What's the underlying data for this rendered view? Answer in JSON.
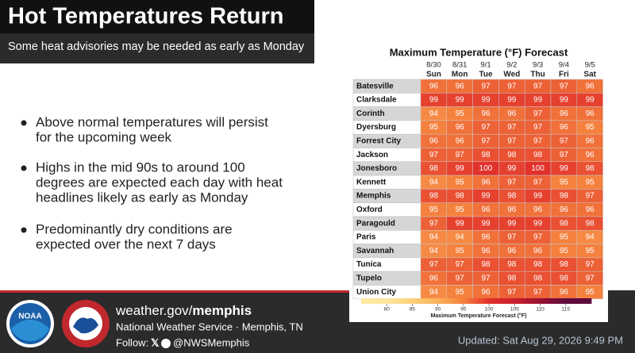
{
  "header": {
    "title": "Hot Temperatures Return",
    "subtitle": "Some heat advisories may be needed as early as Monday"
  },
  "bullets": [
    [
      "Above normal temperatures will persist",
      "for the upcoming week"
    ],
    [
      "Highs in the mid 90s to around 100",
      "degrees are expected each day with heat",
      "headlines likely as early as Monday"
    ],
    [
      "Predominantly dry conditions are",
      "expected over the next 7 days"
    ]
  ],
  "table": {
    "title": "Maximum Temperature (°F) Forecast",
    "dates": [
      "8/30",
      "8/31",
      "9/1",
      "9/2",
      "9/3",
      "9/4",
      "9/5"
    ],
    "days": [
      "Sun",
      "Mon",
      "Tue",
      "Wed",
      "Thu",
      "Fri",
      "Sat"
    ],
    "cities": [
      "Batesville",
      "Clarksdale",
      "Corinth",
      "Dyersburg",
      "Forrest City",
      "Jackson",
      "Jonesboro",
      "Kennett",
      "Memphis",
      "Oxford",
      "Paragould",
      "Paris",
      "Savannah",
      "Tunica",
      "Tupelo",
      "Union City"
    ],
    "rows": [
      [
        96,
        96,
        97,
        97,
        97,
        97,
        96
      ],
      [
        99,
        99,
        99,
        99,
        99,
        99,
        99
      ],
      [
        94,
        95,
        96,
        96,
        97,
        96,
        96
      ],
      [
        95,
        96,
        97,
        97,
        97,
        96,
        95
      ],
      [
        96,
        96,
        97,
        97,
        97,
        97,
        96
      ],
      [
        97,
        97,
        98,
        98,
        98,
        97,
        96
      ],
      [
        98,
        99,
        100,
        99,
        100,
        99,
        98
      ],
      [
        94,
        95,
        96,
        97,
        97,
        95,
        95
      ],
      [
        98,
        98,
        99,
        98,
        99,
        98,
        97
      ],
      [
        95,
        95,
        96,
        96,
        96,
        96,
        96
      ],
      [
        97,
        99,
        99,
        99,
        99,
        98,
        98
      ],
      [
        94,
        94,
        96,
        97,
        97,
        95,
        94
      ],
      [
        94,
        95,
        96,
        96,
        96,
        95,
        95
      ],
      [
        97,
        97,
        98,
        98,
        98,
        98,
        97
      ],
      [
        96,
        97,
        97,
        98,
        98,
        98,
        97
      ],
      [
        94,
        95,
        96,
        97,
        97,
        96,
        95
      ]
    ]
  },
  "legend": {
    "title": "Maximum Temperature Forecast (°F)",
    "range": [
      75,
      120
    ],
    "ticks": [
      80,
      85,
      90,
      95,
      100,
      105,
      110,
      115
    ],
    "colors": [
      "#fde7a0",
      "#fcd07a",
      "#f9b05a",
      "#f5813e",
      "#e2302a",
      "#c81f2c",
      "#9a1234",
      "#5e0a3c"
    ]
  },
  "footer": {
    "logo_noaa": "NOAA",
    "url_prefix": "weather.gov/",
    "url_office": "memphis",
    "office": "National Weather Service · Memphis, TN",
    "follow": "Follow:",
    "handle": "@NWSMemphis",
    "updated": "Updated: Sat Aug 29, 2026 9:49 PM"
  }
}
